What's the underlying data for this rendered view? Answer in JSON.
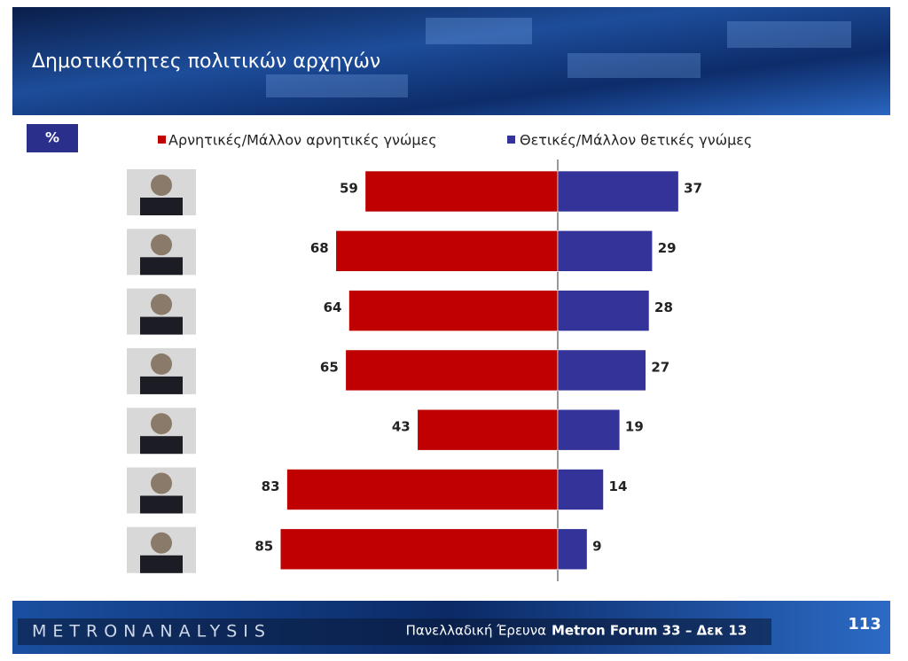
{
  "chart_data": {
    "type": "diverging-bar",
    "title": "Δημοτικότητες πολιτικών αρχηγών",
    "unit_label": "%",
    "series": [
      {
        "name": "Αρνητικές/Μάλλον αρνητικές γνώμες",
        "color": "#c00000",
        "values": [
          59,
          68,
          64,
          65,
          43,
          83,
          85
        ]
      },
      {
        "name": "Θετικές/Μάλλον θετικές γνώμες",
        "color": "#333399",
        "values": [
          37,
          29,
          28,
          27,
          19,
          14,
          9
        ]
      }
    ]
  },
  "footer": {
    "brand": "METRONANALYSIS",
    "survey": "Πανελλαδική Έρευνα",
    "survey_bold": "Metron Forum 33 – Δεκ 13",
    "page": "113"
  }
}
